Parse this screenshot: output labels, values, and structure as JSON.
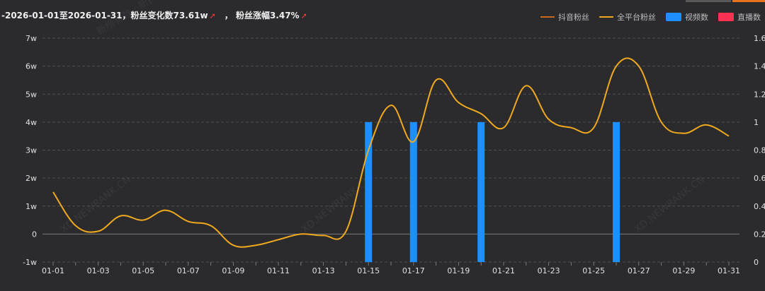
{
  "header": {
    "date_range": "-2026-01-01至2026-01-31",
    "fan_change_label": "，粉丝变化数73.61w",
    "fan_rate_label": "， 粉丝涨幅3.47%",
    "arrow": "➚"
  },
  "legend": [
    {
      "label": "抖音粉丝",
      "kind": "line",
      "color": "#c8691a"
    },
    {
      "label": "全平台粉丝",
      "kind": "line",
      "color": "#f0a91e"
    },
    {
      "label": "视频数",
      "kind": "box",
      "color": "#1d8fff"
    },
    {
      "label": "直播数",
      "kind": "box",
      "color": "#ff3152"
    }
  ],
  "watermark": "XD.NEWRANK.CN",
  "watermark_top": "新榜有数 · 新抖",
  "chart_data": {
    "type": "line",
    "x_categories": [
      "01-01",
      "01-02",
      "01-03",
      "01-04",
      "01-05",
      "01-06",
      "01-07",
      "01-08",
      "01-09",
      "01-10",
      "01-11",
      "01-12",
      "01-13",
      "01-14",
      "01-15",
      "01-16",
      "01-17",
      "01-18",
      "01-19",
      "01-20",
      "01-21",
      "01-22",
      "01-23",
      "01-24",
      "01-25",
      "01-26",
      "01-27",
      "01-28",
      "01-29",
      "01-30",
      "01-31"
    ],
    "x_tick_labels": [
      "01-01",
      "01-03",
      "01-05",
      "01-07",
      "01-09",
      "01-11",
      "01-13",
      "01-15",
      "01-17",
      "01-19",
      "01-21",
      "01-23",
      "01-25",
      "01-27",
      "01-29",
      "01-31"
    ],
    "y_left": {
      "ticks": [
        "-1w",
        "0",
        "1w",
        "2w",
        "3w",
        "4w",
        "5w",
        "6w",
        "7w"
      ],
      "min": -10000,
      "max": 70000
    },
    "y_right": {
      "ticks": [
        "0",
        "0.2",
        "0.4",
        "0.6",
        "0.8",
        "1",
        "1.2",
        "1.4",
        "1.6"
      ],
      "min": 0,
      "max": 1.6
    },
    "series": [
      {
        "name": "全平台粉丝",
        "axis": "left",
        "values": [
          15000,
          3000,
          1000,
          6500,
          5000,
          8500,
          4500,
          3000,
          -4000,
          -4000,
          -2000,
          0,
          -500,
          1000,
          30000,
          46000,
          33000,
          55000,
          47000,
          43000,
          38000,
          53000,
          41000,
          38000,
          38000,
          60000,
          60000,
          40000,
          36000,
          39000,
          35000
        ]
      },
      {
        "name": "视频数",
        "axis": "right",
        "type": "bar",
        "values": [
          0,
          0,
          0,
          0,
          0,
          0,
          0,
          0,
          0,
          0,
          0,
          0,
          0,
          0,
          1,
          0,
          1,
          0,
          0,
          1,
          0,
          0,
          0,
          0,
          0,
          1,
          0,
          0,
          0,
          0,
          0
        ]
      },
      {
        "name": "直播数",
        "axis": "right",
        "type": "bar",
        "values": [
          0,
          0,
          0,
          0,
          0,
          0,
          0,
          0,
          0,
          0,
          0,
          0,
          0,
          0,
          0,
          0,
          0,
          0,
          0,
          0,
          0,
          0,
          0,
          0,
          0,
          0,
          0,
          0,
          0,
          0,
          0
        ]
      }
    ],
    "grid": true,
    "legend_position": "top-right"
  }
}
